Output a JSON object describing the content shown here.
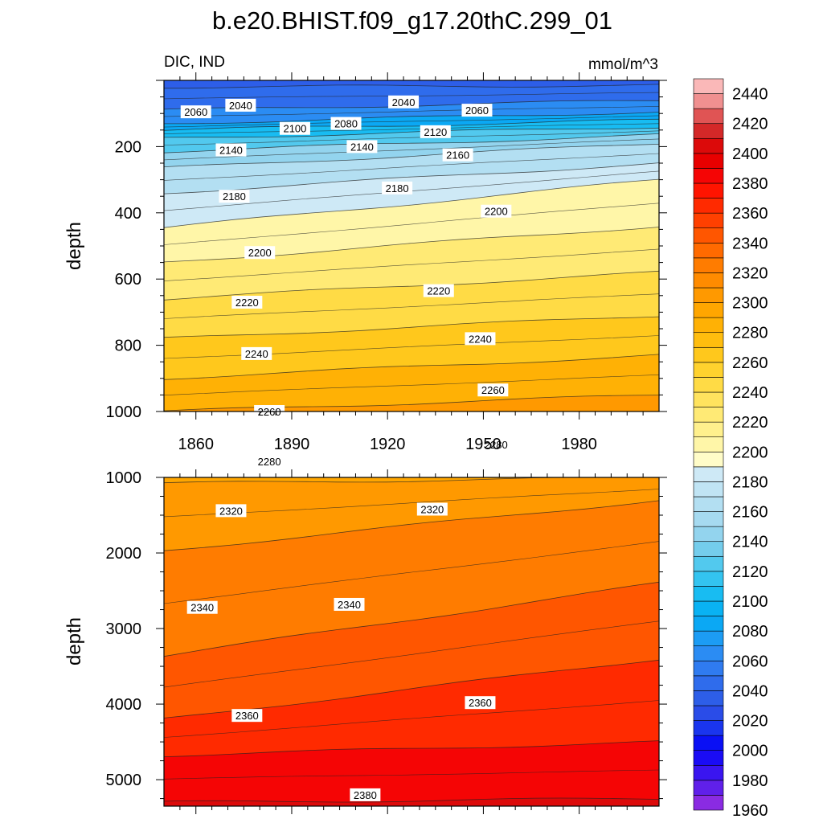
{
  "chart_data": {
    "type": "contour",
    "title": "b.e20.BHIST.f09_g17.20thC.299_01",
    "variable_label": "DIC, IND",
    "units_label": "mmol/m^3",
    "ylabel": "depth",
    "x_range": [
      1850,
      2005
    ],
    "x_ticks": [
      "1860",
      "1890",
      "1920",
      "1950",
      "1980"
    ],
    "panels": [
      {
        "name": "upper",
        "ylim": [
          0,
          1000
        ],
        "y_ticks": [
          "200",
          "400",
          "600",
          "800",
          "1000"
        ],
        "contours": [
          {
            "level": 2040,
            "d1850": 20,
            "d2005": 15
          },
          {
            "level": 2060,
            "d1850": 90,
            "d2005": 60
          },
          {
            "level": 2080,
            "d1850": 130,
            "d2005": 95
          },
          {
            "level": 2100,
            "d1850": 150,
            "d2005": 120
          },
          {
            "level": 2120,
            "d1850": 175,
            "d2005": 140
          },
          {
            "level": 2140,
            "d1850": 215,
            "d2005": 165
          },
          {
            "level": 2160,
            "d1850": 265,
            "d2005": 190
          },
          {
            "level": 2180,
            "d1850": 340,
            "d2005": 250
          },
          {
            "level": 2200,
            "d1850": 445,
            "d2005": 300
          },
          {
            "level": 2220,
            "d1850": 550,
            "d2005": 440
          },
          {
            "level": 2240,
            "d1850": 660,
            "d2005": 580
          },
          {
            "level": 2260,
            "d1850": 780,
            "d2005": 710
          },
          {
            "level": 2280,
            "d1850": 900,
            "d2005": 830
          },
          {
            "level": 2300,
            "d1850": 1000,
            "d2005": 950
          }
        ],
        "labels": [
          {
            "text": "2060",
            "year": 1860,
            "depth": 95
          },
          {
            "text": "2040",
            "year": 1874,
            "depth": 75
          },
          {
            "text": "2100",
            "year": 1891,
            "depth": 145
          },
          {
            "text": "2080",
            "year": 1907,
            "depth": 130
          },
          {
            "text": "2040",
            "year": 1925,
            "depth": 65
          },
          {
            "text": "2060",
            "year": 1948,
            "depth": 90
          },
          {
            "text": "2120",
            "year": 1935,
            "depth": 155
          },
          {
            "text": "2140",
            "year": 1871,
            "depth": 210
          },
          {
            "text": "2140",
            "year": 1912,
            "depth": 200
          },
          {
            "text": "2160",
            "year": 1942,
            "depth": 225
          },
          {
            "text": "2180",
            "year": 1872,
            "depth": 350
          },
          {
            "text": "2180",
            "year": 1923,
            "depth": 325
          },
          {
            "text": "2200",
            "year": 1954,
            "depth": 395
          },
          {
            "text": "2200",
            "year": 1880,
            "depth": 520
          },
          {
            "text": "2220",
            "year": 1876,
            "depth": 670
          },
          {
            "text": "2220",
            "year": 1936,
            "depth": 635
          },
          {
            "text": "2240",
            "year": 1949,
            "depth": 780
          },
          {
            "text": "2240",
            "year": 1879,
            "depth": 825
          },
          {
            "text": "2260",
            "year": 1883,
            "depth": 1000
          },
          {
            "text": "2260",
            "year": 1953,
            "depth": 935
          },
          {
            "text": "2280",
            "year": 1883,
            "depth": 1150
          },
          {
            "text": "2280",
            "year": 1954,
            "depth": 1100
          }
        ]
      },
      {
        "name": "lower",
        "ylim": [
          1000,
          5350
        ],
        "y_ticks": [
          "1000",
          "2000",
          "3000",
          "4000",
          "5000"
        ],
        "contours": [
          {
            "level": 2300,
            "d1850": 1080,
            "d2005": 1000
          },
          {
            "level": 2320,
            "d1850": 1970,
            "d2005": 1300
          },
          {
            "level": 2340,
            "d1850": 3360,
            "d2005": 2400
          },
          {
            "level": 2360,
            "d1850": 4200,
            "d2005": 3400
          },
          {
            "level": 2380,
            "d1850": 4680,
            "d2005": 4500
          },
          {
            "level": 2400,
            "d1850": 5300,
            "d2005": 5250
          }
        ],
        "labels": [
          {
            "text": "2320",
            "year": 1871,
            "depth": 1440
          },
          {
            "text": "2320",
            "year": 1934,
            "depth": 1420
          },
          {
            "text": "2340",
            "year": 1862,
            "depth": 2720
          },
          {
            "text": "2340",
            "year": 1908,
            "depth": 2680
          },
          {
            "text": "2360",
            "year": 1876,
            "depth": 4150
          },
          {
            "text": "2360",
            "year": 1949,
            "depth": 3980
          },
          {
            "text": "2380",
            "year": 1913,
            "depth": 5200
          }
        ]
      }
    ],
    "colorbar": {
      "levels": [
        1960,
        1970,
        1980,
        1990,
        2000,
        2010,
        2020,
        2030,
        2040,
        2050,
        2060,
        2070,
        2080,
        2090,
        2100,
        2110,
        2120,
        2130,
        2140,
        2150,
        2160,
        2170,
        2180,
        2190,
        2200,
        2210,
        2220,
        2230,
        2240,
        2250,
        2260,
        2270,
        2280,
        2290,
        2300,
        2310,
        2320,
        2330,
        2340,
        2350,
        2360,
        2370,
        2380,
        2390,
        2400,
        2410,
        2420,
        2430,
        2440,
        2450
      ],
      "tick_labels": [
        "1960",
        "1980",
        "2000",
        "2020",
        "2040",
        "2060",
        "2080",
        "2100",
        "2120",
        "2140",
        "2160",
        "2180",
        "2200",
        "2220",
        "2240",
        "2260",
        "2280",
        "2300",
        "2320",
        "2340",
        "2360",
        "2380",
        "2400",
        "2420",
        "2440"
      ],
      "colors": [
        "#8a2be2",
        "#6020ea",
        "#3a15f0",
        "#1a0cf5",
        "#0a10f5",
        "#1a35ee",
        "#2a4ce8",
        "#2d5ee8",
        "#2f6cec",
        "#2f7bf0",
        "#2b8cf3",
        "#1c9cf4",
        "#0ba8f4",
        "#09b2f3",
        "#18bcf2",
        "#33c4f0",
        "#52c9ee",
        "#74cdec",
        "#93d4ee",
        "#a6daf0",
        "#b3dff2",
        "#c0e4f4",
        "#cee9f6",
        "#fffcc8",
        "#fff6a8",
        "#fff08d",
        "#ffea75",
        "#ffe35e",
        "#ffdb45",
        "#ffd22e",
        "#ffc81c",
        "#ffbd0e",
        "#ffb105",
        "#ffa600",
        "#ff9900",
        "#ff8b00",
        "#ff7c00",
        "#ff6a00",
        "#ff5600",
        "#ff4000",
        "#ff2a00",
        "#ff1400",
        "#f50505",
        "#e80000",
        "#dc0a0a",
        "#d42828",
        "#e05454",
        "#f09090",
        "#fab8b8"
      ]
    }
  }
}
